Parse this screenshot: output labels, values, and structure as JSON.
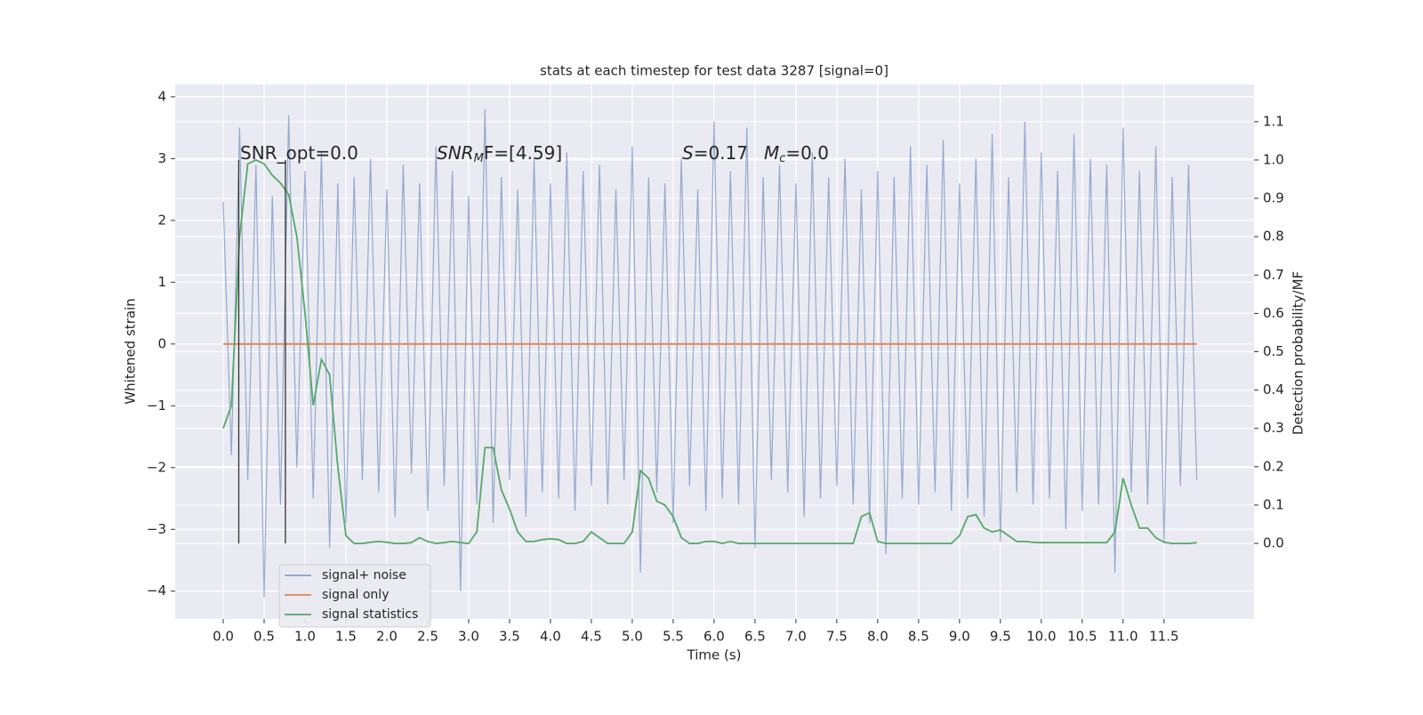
{
  "chart_data": {
    "type": "line",
    "title": "stats at each timestep for test data 3287 [signal=0]",
    "xlabel": "Time (s)",
    "ylabel": "Whitened strain",
    "y2label": "Detection probability/MF",
    "xlim": [
      -0.587,
      12.6
    ],
    "ylim": [
      -4.45,
      4.2
    ],
    "y2lim": [
      -0.197,
      1.197
    ],
    "grid": true,
    "legend": "lower left",
    "xticks": [
      {
        "value": 0,
        "label": "0.0"
      },
      0.5,
      {
        "value": 1,
        "label": "1.0"
      },
      1.5,
      {
        "value": 2,
        "label": "2.0"
      },
      2.5,
      {
        "value": 3,
        "label": "3.0"
      },
      3.5,
      {
        "value": 4,
        "label": "4.0"
      },
      4.5,
      {
        "value": 5,
        "label": "5.0"
      },
      5.5,
      {
        "value": 6,
        "label": "6.0"
      },
      6.5,
      {
        "value": 7,
        "label": "7.0"
      },
      7.5,
      {
        "value": 8,
        "label": "8.0"
      },
      8.5,
      {
        "value": 9,
        "label": "9.0"
      },
      9.5,
      {
        "value": 10,
        "label": "10.0"
      },
      10.5,
      {
        "value": 11,
        "label": "11.0"
      },
      11.5
    ],
    "yticks": [
      {
        "value": -4,
        "label": "−4"
      },
      {
        "value": -3,
        "label": "−3"
      },
      {
        "value": -2,
        "label": "−2"
      },
      {
        "value": -1,
        "label": "−1"
      },
      0,
      1,
      2,
      3,
      4
    ],
    "y2ticks": [
      {
        "value": 0,
        "label": "0.0"
      },
      0.1,
      0.2,
      0.3,
      0.4,
      0.5,
      0.6,
      0.7,
      0.8,
      0.9,
      {
        "value": 1,
        "label": "1.0"
      },
      1.1
    ],
    "annotations": [
      {
        "main": "SNR_opt=0.0"
      },
      {
        "italic": "SNR",
        "sub": "M",
        "main": "F=[4.59]"
      },
      {
        "italic": "S",
        "main": "=0.17"
      },
      {
        "italic": "M",
        "sub": "c",
        "main": "=0.0"
      }
    ],
    "vlines": {
      "x": [
        0.19,
        0.76
      ],
      "y2": [
        0,
        1
      ],
      "color": "#333333"
    },
    "x": [
      0,
      0.1,
      0.2,
      0.3,
      0.4,
      0.5,
      0.6,
      0.7,
      0.8,
      0.9,
      1,
      1.1,
      1.2,
      1.3,
      1.4,
      1.5,
      1.6,
      1.7,
      1.8,
      1.9,
      2,
      2.1,
      2.2,
      2.3,
      2.4,
      2.5,
      2.6,
      2.7,
      2.8,
      2.9,
      3,
      3.1,
      3.2,
      3.3,
      3.4,
      3.5,
      3.6,
      3.7,
      3.8,
      3.9,
      4,
      4.1,
      4.2,
      4.3,
      4.4,
      4.5,
      4.6,
      4.7,
      4.8,
      4.9,
      5,
      5.1,
      5.2,
      5.3,
      5.4,
      5.5,
      5.6,
      5.7,
      5.8,
      5.9,
      6,
      6.1,
      6.2,
      6.3,
      6.4,
      6.5,
      6.6,
      6.7,
      6.8,
      6.9,
      7,
      7.1,
      7.2,
      7.3,
      7.4,
      7.5,
      7.6,
      7.7,
      7.8,
      7.9,
      8,
      8.1,
      8.2,
      8.3,
      8.4,
      8.5,
      8.6,
      8.7,
      8.8,
      8.9,
      9,
      9.1,
      9.2,
      9.3,
      9.4,
      9.5,
      9.6,
      9.7,
      9.8,
      9.9,
      10,
      10.1,
      10.2,
      10.3,
      10.4,
      10.5,
      10.6,
      10.7,
      10.8,
      10.9,
      11,
      11.1,
      11.2,
      11.3,
      11.4,
      11.5,
      11.6,
      11.7,
      11.8,
      11.9
    ],
    "series": [
      {
        "name": "signal+ noise",
        "color": "#4c72b0",
        "values": [
          2.3,
          -1.8,
          3.5,
          -2.2,
          2.9,
          -4.1,
          2.4,
          -2.6,
          3.7,
          -2.0,
          2.8,
          -2.5,
          3.1,
          -3.3,
          2.6,
          -2.9,
          2.7,
          -2.2,
          3.0,
          -2.4,
          2.5,
          -2.8,
          2.9,
          -2.1,
          2.6,
          -2.7,
          3.2,
          -2.3,
          2.8,
          -4.0,
          2.4,
          -2.6,
          3.8,
          -2.9,
          2.7,
          -2.2,
          2.5,
          -2.8,
          3.0,
          -2.4,
          2.6,
          -2.5,
          3.1,
          -2.7,
          2.8,
          -2.3,
          2.9,
          -2.6,
          2.5,
          -2.2,
          3.2,
          -3.7,
          2.7,
          -2.4,
          2.6,
          -2.9,
          3.0,
          -2.3,
          2.5,
          -2.7,
          3.6,
          -2.5,
          2.8,
          -2.6,
          3.5,
          -3.3,
          2.7,
          -2.2,
          2.9,
          -2.4,
          2.6,
          -2.8,
          3.1,
          -2.5,
          2.7,
          -2.3,
          3.0,
          -2.6,
          2.5,
          -2.9,
          2.8,
          -3.4,
          2.7,
          -2.5,
          3.2,
          -2.6,
          2.9,
          -2.4,
          3.3,
          -2.7,
          2.6,
          -2.5,
          3.0,
          -2.8,
          3.4,
          -3.2,
          2.7,
          -2.4,
          3.6,
          -2.6,
          3.1,
          -2.5,
          2.8,
          -3.0,
          3.4,
          -2.7,
          3.0,
          -2.6,
          2.9,
          -3.7,
          3.5,
          -2.4,
          2.8,
          -2.6,
          3.2,
          -3.2,
          2.7,
          -2.3,
          2.9,
          -2.2
        ]
      },
      {
        "name": "signal only",
        "color": "#dd8452",
        "values": [
          0,
          0,
          0,
          0,
          0,
          0,
          0,
          0,
          0,
          0,
          0,
          0,
          0,
          0,
          0,
          0,
          0,
          0,
          0,
          0,
          0,
          0,
          0,
          0,
          0,
          0,
          0,
          0,
          0,
          0,
          0,
          0,
          0,
          0,
          0,
          0,
          0,
          0,
          0,
          0,
          0,
          0,
          0,
          0,
          0,
          0,
          0,
          0,
          0,
          0,
          0,
          0,
          0,
          0,
          0,
          0,
          0,
          0,
          0,
          0,
          0,
          0,
          0,
          0,
          0,
          0,
          0,
          0,
          0,
          0,
          0,
          0,
          0,
          0,
          0,
          0,
          0,
          0,
          0,
          0,
          0,
          0,
          0,
          0,
          0,
          0,
          0,
          0,
          0,
          0,
          0,
          0,
          0,
          0,
          0,
          0,
          0,
          0,
          0,
          0,
          0,
          0,
          0,
          0,
          0,
          0,
          0,
          0,
          0,
          0,
          0,
          0,
          0,
          0,
          0,
          0,
          0,
          0,
          0,
          0
        ]
      },
      {
        "name": "signal statistics",
        "color": "#55a868",
        "axis": "y2",
        "values": [
          0.3,
          0.36,
          0.8,
          0.99,
          1.0,
          0.99,
          0.96,
          0.94,
          0.91,
          0.8,
          0.6,
          0.36,
          0.48,
          0.44,
          0.2,
          0.02,
          0,
          0,
          0.003,
          0.005,
          0.003,
          0,
          0,
          0.002,
          0.015,
          0.005,
          0,
          0.002,
          0.005,
          0.002,
          0,
          0.03,
          0.25,
          0.25,
          0.14,
          0.09,
          0.03,
          0.005,
          0.005,
          0.01,
          0.012,
          0.01,
          0,
          0,
          0.005,
          0.03,
          0.015,
          0,
          0,
          0,
          0.03,
          0.19,
          0.17,
          0.11,
          0.1,
          0.07,
          0.015,
          0,
          0,
          0.005,
          0.005,
          0,
          0.005,
          0,
          0,
          0,
          0,
          0,
          0,
          0,
          0,
          0,
          0,
          0,
          0,
          0,
          0,
          0,
          0.07,
          0.08,
          0.005,
          0,
          0,
          0,
          0,
          0,
          0,
          0,
          0,
          0,
          0.02,
          0.07,
          0.075,
          0.04,
          0.03,
          0.035,
          0.02,
          0.005,
          0.005,
          0.003,
          0.002,
          0.002,
          0.002,
          0.002,
          0.002,
          0.002,
          0.002,
          0.002,
          0.002,
          0.03,
          0.17,
          0.1,
          0.04,
          0.04,
          0.015,
          0.003,
          0,
          0,
          0,
          0.002
        ]
      }
    ]
  }
}
